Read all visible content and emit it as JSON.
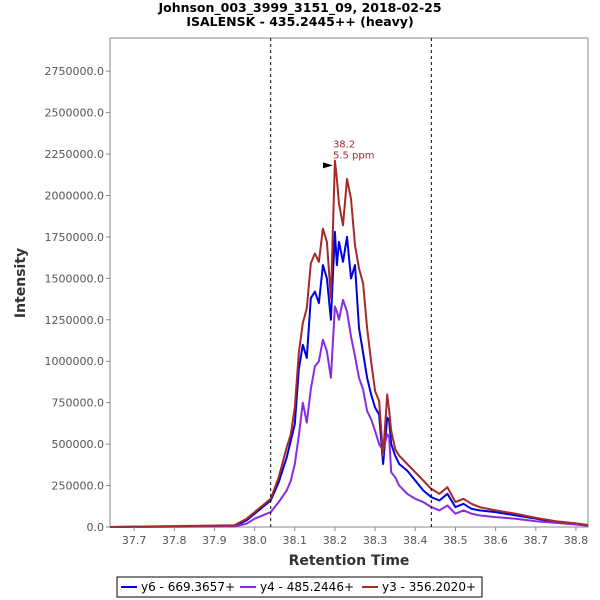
{
  "chart_data": {
    "type": "line",
    "title": "Johnson_003_3999_3151_09, 2018-02-25",
    "subtitle": "ISALENSK - 435.2445++ (heavy)",
    "xlabel": "Retention Time",
    "ylabel": "Intensity",
    "xlim": [
      37.64,
      38.83
    ],
    "ylim": [
      0,
      2950000
    ],
    "x_ticks": [
      "37.7",
      "37.8",
      "37.9",
      "38.0",
      "38.1",
      "38.2",
      "38.3",
      "38.4",
      "38.5",
      "38.6",
      "38.7",
      "38.8"
    ],
    "y_ticks": [
      "0.0",
      "250000.0",
      "500000.0",
      "750000.0",
      "1000000.0",
      "1250000.0",
      "1500000.0",
      "1750000.0",
      "2000000.0",
      "2250000.0",
      "2500000.0",
      "2750000.0"
    ],
    "grid": false,
    "legend_position": "bottom",
    "boundaries": [
      38.04,
      38.44
    ],
    "annotation": {
      "x": 38.2,
      "y": 2230000,
      "line1": "38.2",
      "line2": "5.5 ppm",
      "color": "#a52a2a"
    },
    "series": [
      {
        "name": "y6 - 669.3657+",
        "color": "#0000e0",
        "x": [
          37.64,
          37.95,
          37.98,
          38.0,
          38.02,
          38.04,
          38.06,
          38.08,
          38.09,
          38.1,
          38.11,
          38.12,
          38.13,
          38.14,
          38.15,
          38.16,
          38.17,
          38.18,
          38.19,
          38.2,
          38.205,
          38.21,
          38.22,
          38.23,
          38.24,
          38.25,
          38.26,
          38.27,
          38.28,
          38.29,
          38.3,
          38.31,
          38.32,
          38.33,
          38.335,
          38.34,
          38.35,
          38.36,
          38.38,
          38.4,
          38.42,
          38.44,
          38.46,
          38.48,
          38.5,
          38.52,
          38.54,
          38.56,
          38.6,
          38.65,
          38.7,
          38.75,
          38.8,
          38.83
        ],
        "y": [
          0,
          5000,
          40000,
          80000,
          120000,
          160000,
          270000,
          420000,
          520000,
          620000,
          950000,
          1100000,
          1020000,
          1380000,
          1420000,
          1350000,
          1580000,
          1500000,
          1250000,
          1780000,
          1580000,
          1720000,
          1600000,
          1750000,
          1500000,
          1580000,
          1200000,
          1050000,
          900000,
          800000,
          720000,
          680000,
          380000,
          660000,
          640000,
          500000,
          430000,
          380000,
          340000,
          280000,
          220000,
          180000,
          160000,
          200000,
          120000,
          140000,
          110000,
          100000,
          90000,
          70000,
          50000,
          30000,
          20000,
          10000
        ]
      },
      {
        "name": "y4 - 485.2446+",
        "color": "#8a2be2",
        "x": [
          37.64,
          37.95,
          37.98,
          38.0,
          38.02,
          38.04,
          38.06,
          38.08,
          38.09,
          38.1,
          38.11,
          38.12,
          38.13,
          38.14,
          38.15,
          38.16,
          38.17,
          38.18,
          38.19,
          38.2,
          38.205,
          38.21,
          38.22,
          38.23,
          38.24,
          38.25,
          38.26,
          38.27,
          38.28,
          38.29,
          38.3,
          38.31,
          38.32,
          38.33,
          38.335,
          38.34,
          38.35,
          38.36,
          38.38,
          38.4,
          38.42,
          38.44,
          38.46,
          38.48,
          38.5,
          38.52,
          38.54,
          38.56,
          38.6,
          38.65,
          38.7,
          38.75,
          38.8,
          38.83
        ],
        "y": [
          0,
          3000,
          20000,
          50000,
          70000,
          90000,
          150000,
          220000,
          280000,
          380000,
          550000,
          750000,
          630000,
          830000,
          970000,
          1000000,
          1130000,
          1060000,
          900000,
          1330000,
          1300000,
          1250000,
          1370000,
          1300000,
          1150000,
          1030000,
          900000,
          830000,
          700000,
          650000,
          580000,
          500000,
          460000,
          560000,
          540000,
          330000,
          300000,
          250000,
          200000,
          170000,
          150000,
          120000,
          100000,
          130000,
          80000,
          100000,
          80000,
          70000,
          60000,
          50000,
          35000,
          25000,
          15000,
          8000
        ]
      },
      {
        "name": "y3 - 356.2020+",
        "color": "#a52a2a",
        "x": [
          37.64,
          37.95,
          37.98,
          38.0,
          38.02,
          38.04,
          38.06,
          38.08,
          38.09,
          38.1,
          38.11,
          38.12,
          38.13,
          38.14,
          38.15,
          38.16,
          38.17,
          38.18,
          38.19,
          38.2,
          38.205,
          38.21,
          38.22,
          38.23,
          38.24,
          38.25,
          38.26,
          38.27,
          38.28,
          38.29,
          38.3,
          38.31,
          38.32,
          38.33,
          38.335,
          38.34,
          38.35,
          38.36,
          38.38,
          38.4,
          38.42,
          38.44,
          38.46,
          38.48,
          38.5,
          38.52,
          38.54,
          38.56,
          38.6,
          38.65,
          38.7,
          38.75,
          38.8,
          38.83
        ],
        "y": [
          0,
          10000,
          50000,
          90000,
          130000,
          170000,
          300000,
          480000,
          560000,
          720000,
          1050000,
          1230000,
          1320000,
          1590000,
          1650000,
          1600000,
          1800000,
          1720000,
          1380000,
          2210000,
          2100000,
          1950000,
          1820000,
          2100000,
          1980000,
          1700000,
          1560000,
          1470000,
          1200000,
          1000000,
          820000,
          760000,
          430000,
          800000,
          700000,
          580000,
          470000,
          430000,
          380000,
          330000,
          280000,
          230000,
          200000,
          240000,
          150000,
          170000,
          140000,
          120000,
          100000,
          80000,
          55000,
          35000,
          22000,
          12000
        ]
      }
    ]
  }
}
